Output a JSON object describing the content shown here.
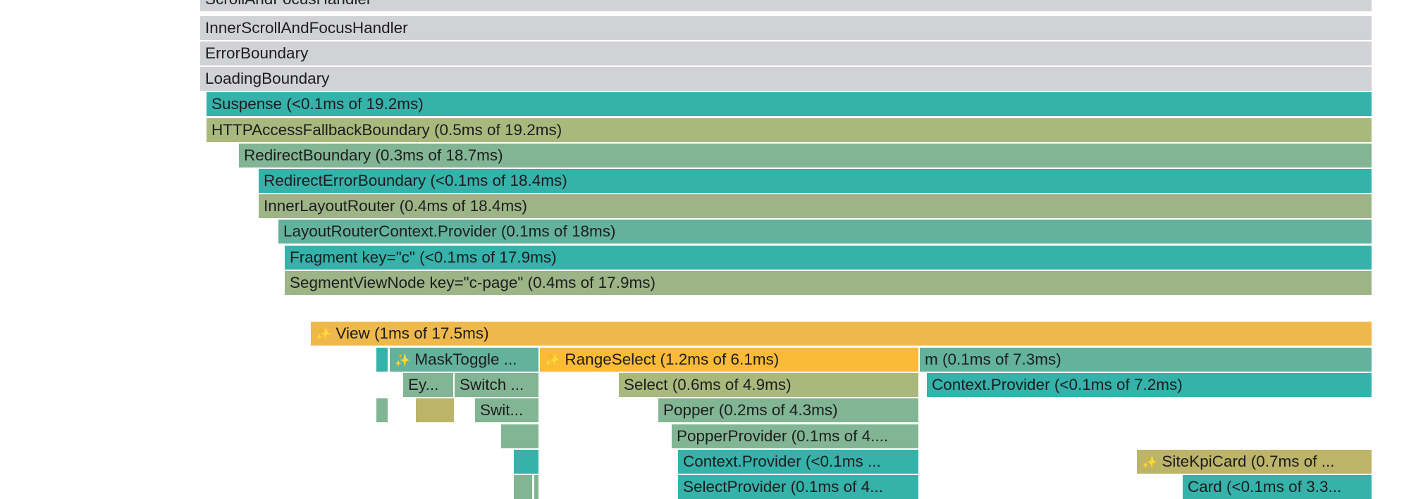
{
  "rows": {
    "scroll_focus_handler": "ScrollAndFocusHandler",
    "inner_scroll_focus_handler": "InnerScrollAndFocusHandler",
    "error_boundary": "ErrorBoundary",
    "loading_boundary": "LoadingBoundary",
    "suspense": "Suspense (<0.1ms of 19.2ms)",
    "http_access_fallback_boundary": "HTTPAccessFallbackBoundary (0.5ms of 19.2ms)",
    "redirect_boundary": "RedirectBoundary (0.3ms of 18.7ms)",
    "redirect_error_boundary": "RedirectErrorBoundary (<0.1ms of 18.4ms)",
    "inner_layout_router": "InnerLayoutRouter (0.4ms of 18.4ms)",
    "layout_router_context_provider": "LayoutRouterContext.Provider (0.1ms of 18ms)",
    "fragment_c": "Fragment key=\"c\" (<0.1ms of 17.9ms)",
    "segment_view_node": "SegmentViewNode key=\"c-page\" (0.4ms of 17.9ms)",
    "view": "View (1ms of 17.5ms)",
    "mask_toggle": "MaskToggle ...",
    "range_select": "RangeSelect (1.2ms of 6.1ms)",
    "m": "m (0.1ms of 7.3ms)",
    "ey": "Ey...",
    "switch1": "Switch ...",
    "select": "Select (0.6ms of 4.9ms)",
    "context_provider_1": "Context.Provider (<0.1ms of 7.2ms)",
    "swit": "Swit...",
    "popper": "Popper (0.2ms of 4.3ms)",
    "popper_provider": "PopperProvider (0.1ms of 4....",
    "context_provider_2": "Context.Provider (<0.1ms ...",
    "site_kpi_card": "SiteKpiCard (0.7ms of ...",
    "select_provider": "SelectProvider (0.1ms of 4...",
    "card": "Card (<0.1ms of 3.3..."
  },
  "sparkle_icon": "✨",
  "colors": {
    "gray": "#d1d2d6",
    "teal": "#35b2aa",
    "olive": "#a9b87d",
    "sage": "#82b594",
    "sea": "#62b29c",
    "moss": "#9db486",
    "gold": "#efb84b",
    "amber": "#fbba37",
    "khaki": "#bcb468"
  }
}
